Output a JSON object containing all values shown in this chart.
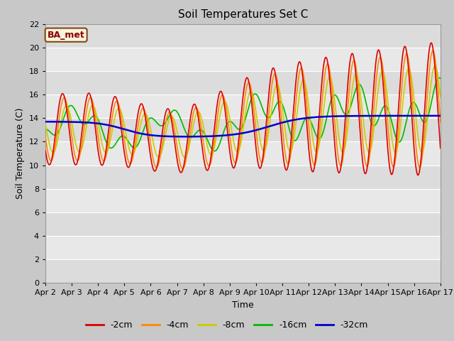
{
  "title": "Soil Temperatures Set C",
  "xlabel": "Time",
  "ylabel": "Soil Temperature (C)",
  "annotation": "BA_met",
  "ylim": [
    0,
    22
  ],
  "yticks": [
    0,
    2,
    4,
    6,
    8,
    10,
    12,
    14,
    16,
    18,
    20,
    22
  ],
  "series": {
    "-2cm": {
      "color": "#dd0000",
      "lw": 1.2
    },
    "-4cm": {
      "color": "#ff8800",
      "lw": 1.2
    },
    "-8cm": {
      "color": "#cccc00",
      "lw": 1.2
    },
    "-16cm": {
      "color": "#00bb00",
      "lw": 1.2
    },
    "-32cm": {
      "color": "#0000cc",
      "lw": 1.8
    }
  },
  "x_labels": [
    "Apr 2",
    "Apr 3",
    "Apr 4",
    "Apr 5",
    "Apr 6",
    "Apr 7",
    "Apr 8",
    "Apr 9",
    "Apr 10",
    "Apr 11",
    "Apr 12",
    "Apr 13",
    "Apr 14",
    "Apr 15",
    "Apr 16",
    "Apr 17"
  ],
  "band_colors": [
    "#dcdcdc",
    "#e8e8e8"
  ],
  "fig_bg": "#c8c8c8",
  "plot_bg": "#e0e0e0"
}
